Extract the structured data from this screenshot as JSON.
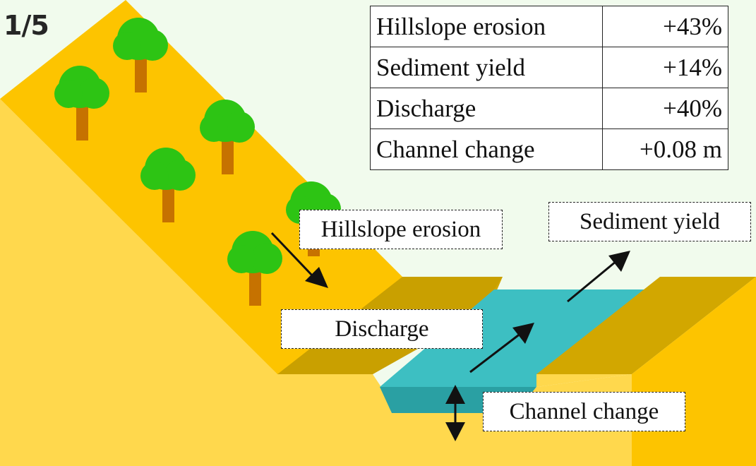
{
  "page_indicator": "1/5",
  "table": {
    "rows": [
      {
        "label": "Hillslope erosion",
        "value": "+43%"
      },
      {
        "label": "Sediment yield",
        "value": "+14%"
      },
      {
        "label": "Discharge",
        "value": "+40%"
      },
      {
        "label": "Channel change",
        "value": "+0.08 m"
      }
    ]
  },
  "callouts": {
    "hillslope_erosion": "Hillslope erosion",
    "sediment_yield": "Sediment yield",
    "discharge": "Discharge",
    "channel_change": "Channel change"
  },
  "colors": {
    "background": "#f1fbed",
    "hillslope_top": "#fdc400",
    "hillslope_side": "#ffd84d",
    "bank": "#d2a700",
    "water": "#3dbfc2",
    "water_dark": "#2aa0a3",
    "tree_crown": "#2dc414",
    "tree_trunk": "#c67200"
  }
}
